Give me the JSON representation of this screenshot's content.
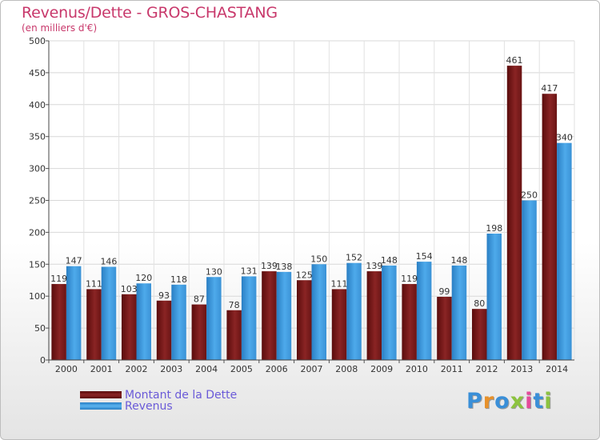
{
  "header": {
    "title": "Revenus/Dette - GROS-CHASTANG",
    "subtitle": "(en milliers d'€)"
  },
  "legend": {
    "items": [
      {
        "label": "Montant de la Dette",
        "color": "#7a1a1a"
      },
      {
        "label": "Revenus",
        "color": "#3d9de0"
      }
    ]
  },
  "logo": {
    "text": "Proxiti",
    "letters": [
      {
        "ch": "P",
        "color": "#3a8fd8"
      },
      {
        "ch": "r",
        "color": "#e7912b"
      },
      {
        "ch": "o",
        "color": "#3a8fd8"
      },
      {
        "ch": "x",
        "color": "#8cc33f"
      },
      {
        "ch": "i",
        "color": "#e44b9b"
      },
      {
        "ch": "t",
        "color": "#3a8fd8"
      },
      {
        "ch": "i",
        "color": "#8cc33f"
      }
    ]
  },
  "chart_data": {
    "type": "bar",
    "title": "Revenus/Dette - GROS-CHASTANG",
    "subtitle": "(en milliers d'€)",
    "xlabel": "",
    "ylabel": "",
    "ylim": [
      0,
      500
    ],
    "yticks": [
      0,
      50,
      100,
      150,
      200,
      250,
      300,
      350,
      400,
      450,
      500
    ],
    "grid": true,
    "legend_position": "bottom-left",
    "categories": [
      "2000",
      "2001",
      "2002",
      "2003",
      "2004",
      "2005",
      "2006",
      "2007",
      "2008",
      "2009",
      "2010",
      "2011",
      "2012",
      "2013",
      "2014"
    ],
    "series": [
      {
        "name": "Montant de la Dette",
        "color": "#7a1a1a",
        "values": [
          119,
          111,
          103,
          93,
          87,
          78,
          139,
          125,
          111,
          139,
          119,
          99,
          80,
          461,
          417
        ]
      },
      {
        "name": "Revenus",
        "color": "#3d9de0",
        "values": [
          147,
          146,
          120,
          118,
          130,
          131,
          138,
          150,
          152,
          148,
          154,
          148,
          198,
          250,
          340
        ]
      }
    ]
  }
}
